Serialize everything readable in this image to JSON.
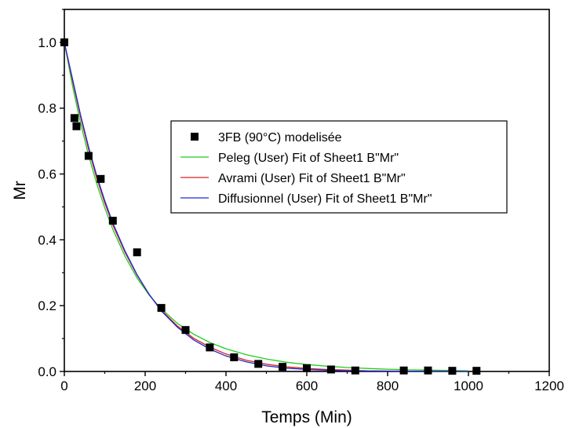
{
  "chart_data": {
    "type": "scatter",
    "xlabel": "Temps (Min)",
    "ylabel": "Mr",
    "xlim": [
      0,
      1200
    ],
    "ylim": [
      0,
      1.1
    ],
    "xticks": [
      0,
      200,
      400,
      600,
      800,
      1000,
      1200
    ],
    "yticks": [
      0.0,
      0.2,
      0.4,
      0.6,
      0.8,
      1.0
    ],
    "xtick_labels": [
      "0",
      "200",
      "400",
      "600",
      "800",
      "1000",
      "1200"
    ],
    "ytick_labels": [
      "0.0",
      "0.2",
      "0.4",
      "0.6",
      "0.8",
      "1.0"
    ],
    "legend_position": "center-right",
    "series": [
      {
        "name": "3FB (90°C) modelisée",
        "kind": "markers",
        "color": "#000000",
        "x": [
          0,
          25,
          30,
          60,
          90,
          120,
          180,
          240,
          300,
          360,
          420,
          480,
          540,
          600,
          660,
          720,
          840,
          900,
          960,
          1020
        ],
        "y": [
          1.0,
          0.77,
          0.745,
          0.655,
          0.585,
          0.458,
          0.362,
          0.193,
          0.126,
          0.073,
          0.043,
          0.023,
          0.014,
          0.01,
          0.006,
          0.003,
          0.003,
          0.003,
          0.002,
          0.002
        ]
      },
      {
        "name": "Peleg (User) Fit of Sheet1 B\"Mr\"",
        "kind": "line",
        "color": "#22cc22",
        "x": [
          0,
          20,
          40,
          60,
          80,
          100,
          120,
          150,
          180,
          210,
          240,
          280,
          320,
          360,
          400,
          450,
          500,
          550,
          600,
          650,
          700,
          750,
          800,
          850,
          900,
          950,
          1000
        ],
        "y": [
          1.0,
          0.869,
          0.755,
          0.657,
          0.571,
          0.497,
          0.432,
          0.35,
          0.284,
          0.232,
          0.19,
          0.146,
          0.113,
          0.088,
          0.069,
          0.051,
          0.038,
          0.028,
          0.021,
          0.016,
          0.012,
          0.009,
          0.007,
          0.005,
          0.004,
          0.003,
          0.002
        ]
      },
      {
        "name": "Avrami (User) Fit of Sheet1 B\"Mr\"",
        "kind": "line",
        "color": "#e02020",
        "x": [
          0,
          20,
          40,
          60,
          80,
          100,
          120,
          150,
          180,
          210,
          240,
          280,
          320,
          360,
          400,
          450,
          500,
          550,
          600,
          650,
          700,
          750,
          800,
          850,
          900,
          950,
          1000
        ],
        "y": [
          1.0,
          0.885,
          0.774,
          0.675,
          0.588,
          0.512,
          0.445,
          0.362,
          0.292,
          0.234,
          0.186,
          0.138,
          0.101,
          0.074,
          0.053,
          0.034,
          0.022,
          0.014,
          0.009,
          0.006,
          0.004,
          0.002,
          0.0015,
          0.001,
          0.0006,
          0.0004,
          0.0002
        ]
      },
      {
        "name": "Diffusionnel (User) Fit of Sheet1 B\"Mr\"",
        "kind": "line",
        "color": "#1f2bd0",
        "x": [
          0,
          20,
          40,
          60,
          80,
          100,
          120,
          150,
          180,
          210,
          240,
          280,
          320,
          360,
          400,
          450,
          500,
          550,
          600,
          650,
          700,
          750,
          800,
          850,
          900,
          950,
          1000
        ],
        "y": [
          1.0,
          0.89,
          0.78,
          0.682,
          0.595,
          0.519,
          0.451,
          0.366,
          0.294,
          0.234,
          0.184,
          0.134,
          0.096,
          0.068,
          0.047,
          0.029,
          0.017,
          0.01,
          0.006,
          0.004,
          0.002,
          0.0013,
          0.0008,
          0.0005,
          0.0003,
          0.0002,
          0.0001
        ]
      }
    ]
  }
}
